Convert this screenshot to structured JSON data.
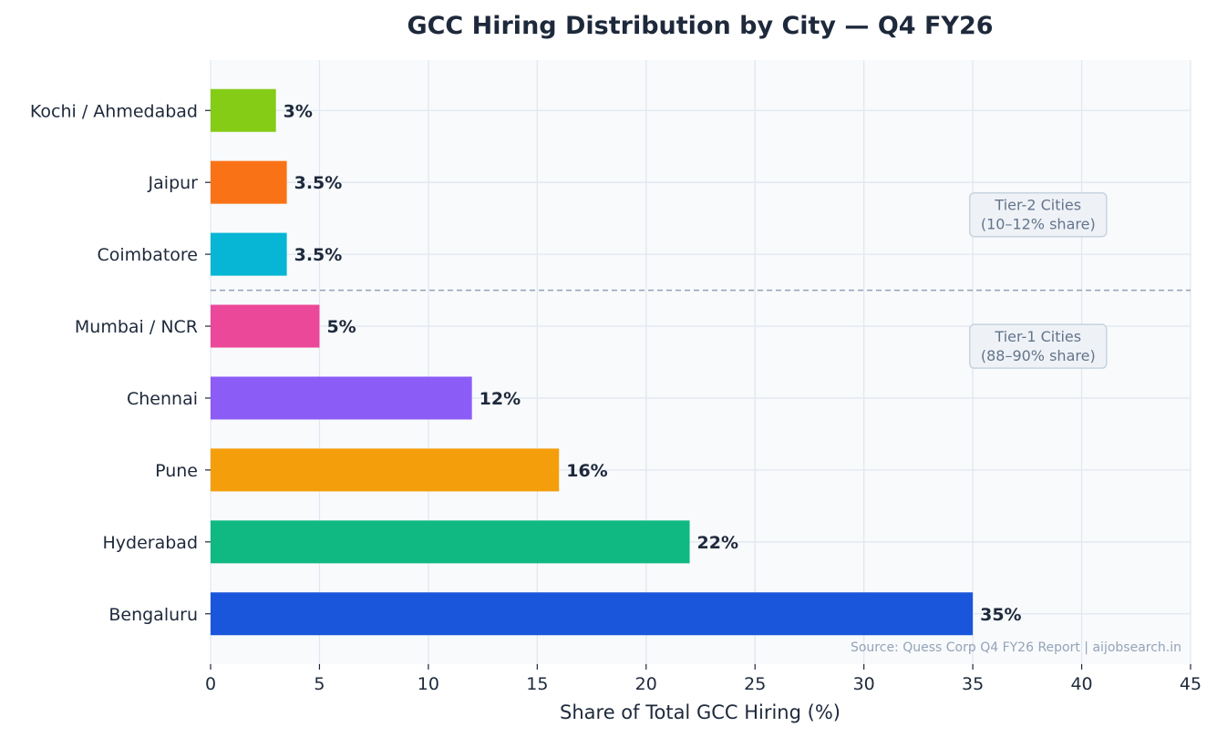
{
  "colors": {
    "background": "#ffffff",
    "plot_background": "#f8fafc",
    "grid": "#e2e8f0",
    "text": "#1e293b",
    "divider": "#94a3b8",
    "tier_box_fill": "#eef2f7",
    "tier_box_border": "#c8d3e0",
    "tier_text": "#64748b",
    "source_text": "#94a3b8"
  },
  "chart_data": {
    "type": "bar",
    "orientation": "horizontal",
    "title": "GCC Hiring Distribution by City — Q4 FY26",
    "xlabel": "Share of Total GCC Hiring (%)",
    "ylabel": "",
    "xlim": [
      0,
      45
    ],
    "xticks": [
      0,
      5,
      10,
      15,
      20,
      25,
      30,
      35,
      40,
      45
    ],
    "grid": true,
    "categories": [
      "Bengaluru",
      "Hyderabad",
      "Pune",
      "Chennai",
      "Mumbai / NCR",
      "Coimbatore",
      "Jaipur",
      "Kochi / Ahmedabad"
    ],
    "values": [
      35,
      22,
      16,
      12,
      5,
      3.5,
      3.5,
      3
    ],
    "data_labels": [
      "35%",
      "22%",
      "16%",
      "12%",
      "5%",
      "3.5%",
      "3.5%",
      "3%"
    ],
    "bar_colors": [
      "#1a56db",
      "#10b981",
      "#f59e0b",
      "#8b5cf6",
      "#ec4899",
      "#06b6d4",
      "#f97316",
      "#84cc16"
    ],
    "divider": {
      "between": [
        "Mumbai / NCR",
        "Coimbatore"
      ],
      "style": "dashed"
    },
    "annotations": [
      {
        "name": "tier-2-cities",
        "lines": [
          "Tier-2 Cities",
          "(10–12% share)"
        ],
        "anchor_category": "Jaipur",
        "anchor_offset": -0.45,
        "x_center": 38
      },
      {
        "name": "tier-1-cities",
        "lines": [
          "Tier-1 Cities",
          "(88–90% share)"
        ],
        "anchor_category": "Mumbai / NCR",
        "anchor_offset": -0.28,
        "x_center": 38
      }
    ],
    "source": "Source: Quess Corp Q4 FY26 Report | aijobsearch.in"
  }
}
